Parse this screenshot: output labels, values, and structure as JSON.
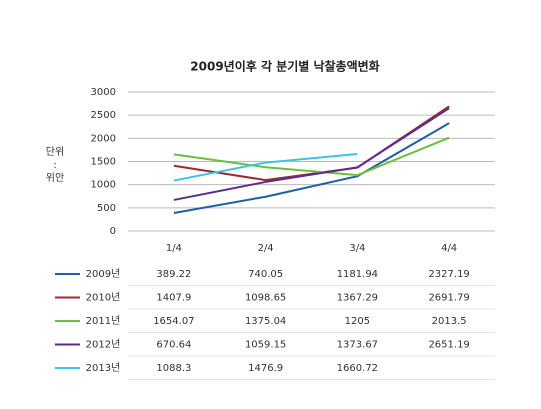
{
  "chart_data": {
    "type": "line",
    "title": "2009년이후 각 분기별 낙찰총액변화",
    "y_label_lines": [
      "단위",
      ":",
      "위안"
    ],
    "categories": [
      "1/4",
      "2/4",
      "3/4",
      "4/4"
    ],
    "series": [
      {
        "name": "2009년",
        "color": "#1f5fa8",
        "values": [
          389.22,
          740.05,
          1181.94,
          2327.19
        ]
      },
      {
        "name": "2010년",
        "color": "#9b2a35",
        "values": [
          1407.9,
          1098.65,
          1367.29,
          2691.79
        ]
      },
      {
        "name": "2011년",
        "color": "#6cbf3c",
        "values": [
          1654.07,
          1375.04,
          1205,
          2013.5
        ]
      },
      {
        "name": "2012년",
        "color": "#5a2d8c",
        "values": [
          670.64,
          1059.15,
          1373.67,
          2651.19
        ]
      },
      {
        "name": "2013년",
        "color": "#3cc4e8",
        "values": [
          1088.3,
          1476.9,
          1660.72,
          null
        ]
      }
    ],
    "ylim": [
      0,
      3000
    ],
    "yticks": [
      0,
      500,
      1000,
      1500,
      2000,
      2500,
      3000
    ],
    "grid": true
  }
}
